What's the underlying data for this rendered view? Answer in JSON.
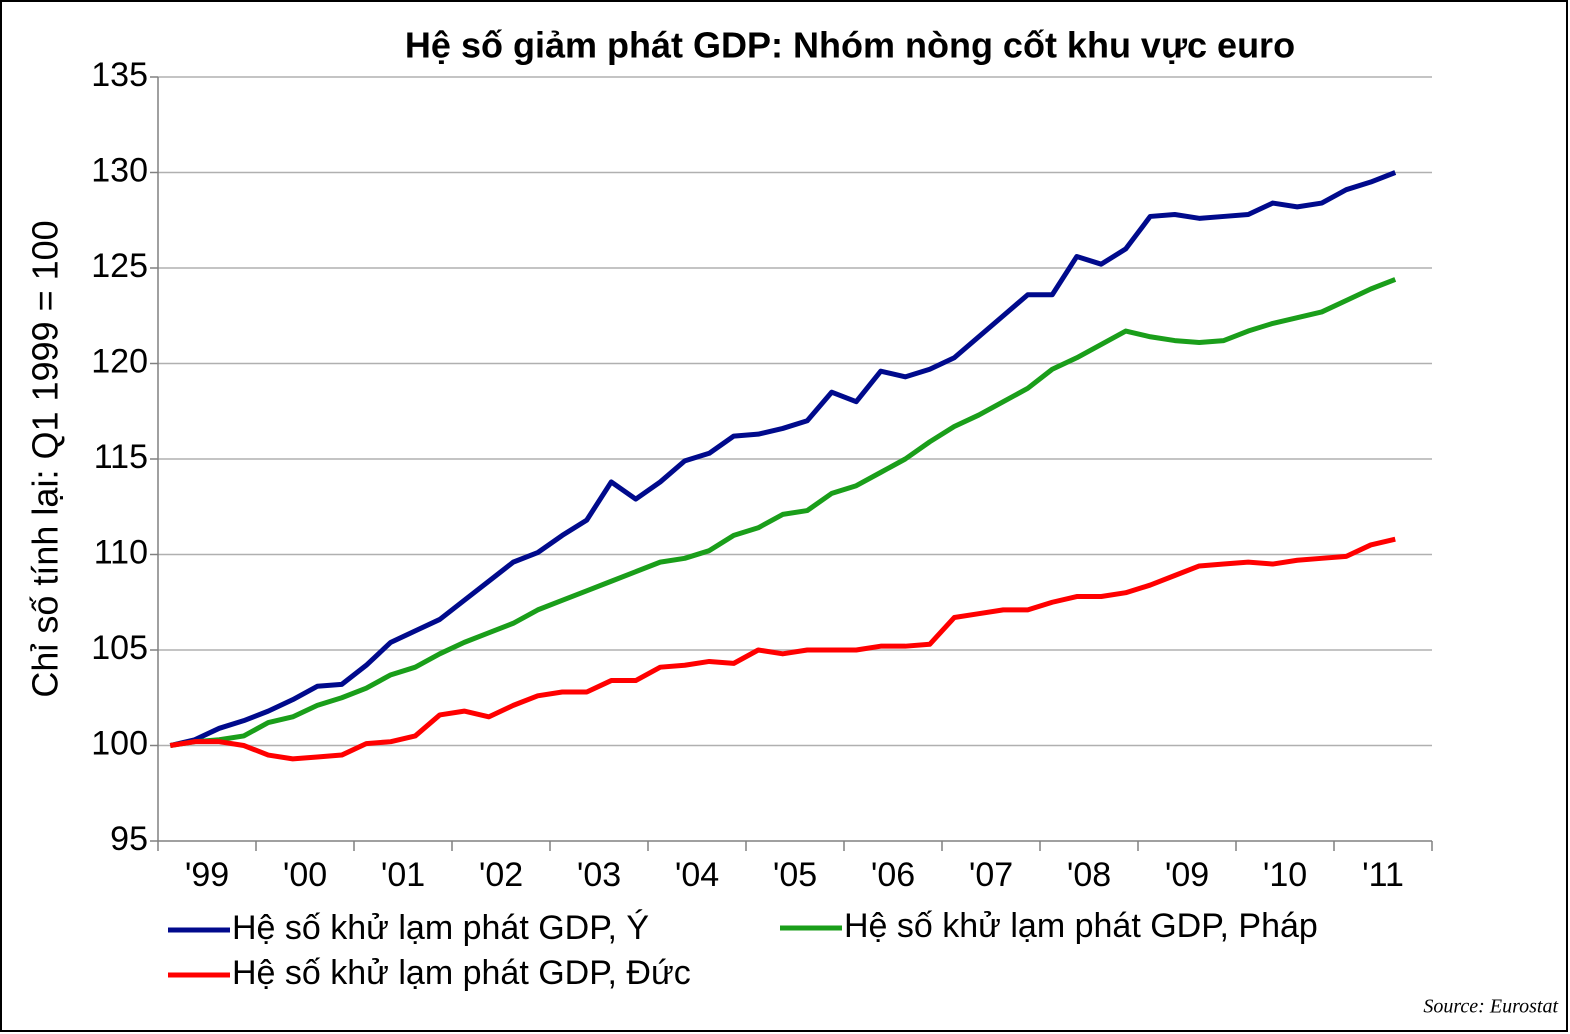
{
  "chart_data": {
    "type": "line",
    "title": "Hệ số giảm phát GDP: Nhóm nòng cốt khu vực euro",
    "y_label": "Chỉ số tính lại: Q1 1999 = 100",
    "source": "Source:  Eurostat",
    "categories": [
      "'99",
      null,
      null,
      null,
      "'00",
      null,
      null,
      null,
      "'01",
      null,
      null,
      null,
      "'02",
      null,
      null,
      null,
      "'03",
      null,
      null,
      null,
      "'04",
      null,
      null,
      null,
      "'05",
      null,
      null,
      null,
      "'06",
      null,
      null,
      null,
      "'07",
      null,
      null,
      null,
      "'08",
      null,
      null,
      null,
      "'09",
      null,
      null,
      null,
      "'10",
      null,
      null,
      null,
      "'11",
      null,
      null
    ],
    "series": [
      {
        "name": "Hệ số khử lạm phát GDP, Ý",
        "color": "#000a8c",
        "values": [
          100,
          100.3,
          100.9,
          101.3,
          101.8,
          102.4,
          103.1,
          103.2,
          104.2,
          105.4,
          106.0,
          106.6,
          107.6,
          108.6,
          109.6,
          110.1,
          111.0,
          111.8,
          113.8,
          112.9,
          113.8,
          114.9,
          115.3,
          116.2,
          116.3,
          116.6,
          117.0,
          118.5,
          118.0,
          119.6,
          119.3,
          119.7,
          120.3,
          121.4,
          122.5,
          123.6,
          123.6,
          125.6,
          125.2,
          126.0,
          127.7,
          127.8,
          127.6,
          127.7,
          127.8,
          128.4,
          128.2,
          128.4,
          129.1,
          129.5,
          130.0
        ]
      },
      {
        "name": "Hệ số khử lạm phát GDP, Pháp",
        "color": "#1a9e1a",
        "values": [
          100,
          100.2,
          100.3,
          100.5,
          101.2,
          101.5,
          102.1,
          102.5,
          103.0,
          103.7,
          104.1,
          104.8,
          105.4,
          105.9,
          106.4,
          107.1,
          107.6,
          108.1,
          108.6,
          109.1,
          109.6,
          109.8,
          110.2,
          111.0,
          111.4,
          112.1,
          112.3,
          113.2,
          113.6,
          114.3,
          115.0,
          115.9,
          116.7,
          117.3,
          118.0,
          118.7,
          119.7,
          120.3,
          121.0,
          121.7,
          121.4,
          121.2,
          121.1,
          121.2,
          121.7,
          122.1,
          122.4,
          122.7,
          123.3,
          123.9,
          124.4
        ]
      },
      {
        "name": "Hệ số khử lạm phát GDP, Đức",
        "color": "#ff0000",
        "values": [
          100,
          100.2,
          100.2,
          100.0,
          99.5,
          99.3,
          99.4,
          99.5,
          100.1,
          100.2,
          100.5,
          101.6,
          101.8,
          101.5,
          102.1,
          102.6,
          102.8,
          102.8,
          103.4,
          103.4,
          104.1,
          104.2,
          104.4,
          104.3,
          105.0,
          104.8,
          105.0,
          105.0,
          105.0,
          105.2,
          105.2,
          105.3,
          106.7,
          106.9,
          107.1,
          107.1,
          107.5,
          107.8,
          107.8,
          108.0,
          108.4,
          108.9,
          109.4,
          109.5,
          109.6,
          109.5,
          109.7,
          109.8,
          109.9,
          110.5,
          110.8
        ]
      }
    ],
    "ylim": [
      95,
      135
    ],
    "yticks": [
      95,
      100,
      105,
      110,
      115,
      120,
      125,
      130,
      135
    ],
    "grid": true
  }
}
